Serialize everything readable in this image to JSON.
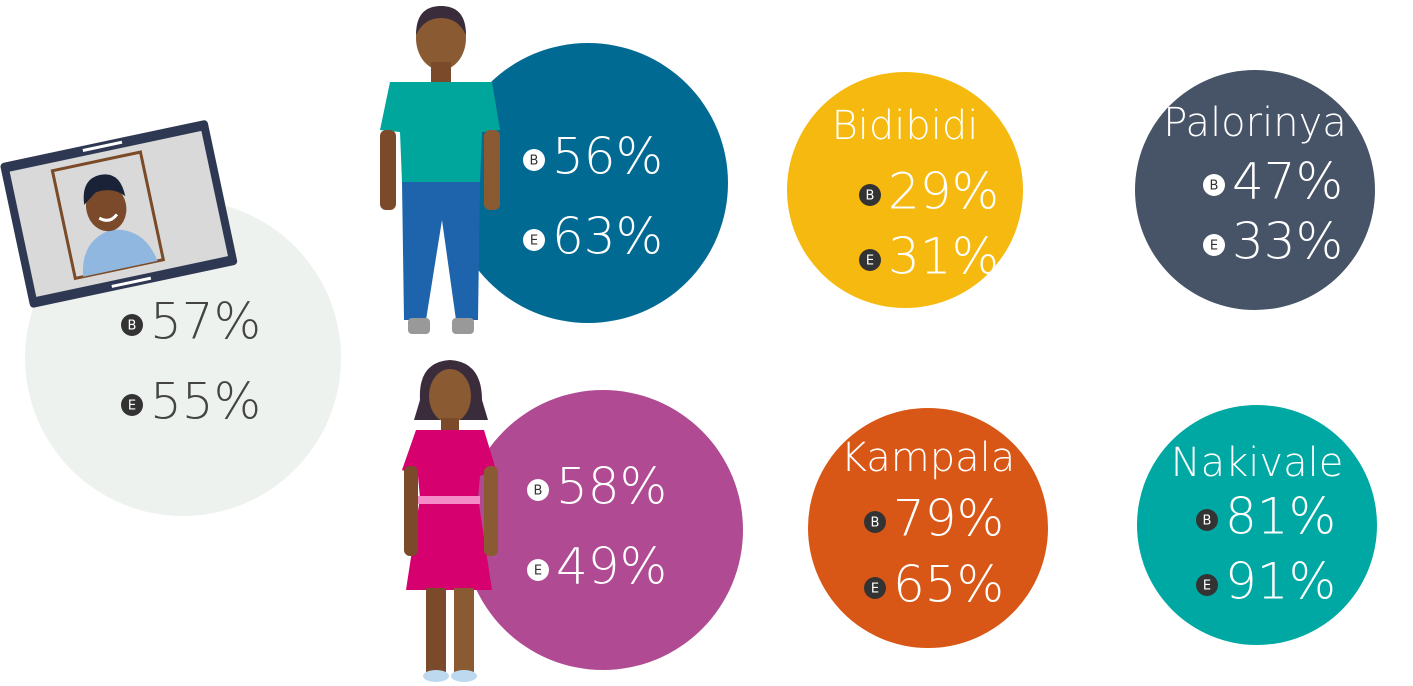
{
  "groups": [
    {
      "items": [
        {
          "badge": "B",
          "value": "57%"
        },
        {
          "badge": "E",
          "value": "55%"
        }
      ]
    },
    {
      "items": [
        {
          "badge": "B",
          "value": "56%"
        },
        {
          "badge": "E",
          "value": "63%"
        }
      ]
    },
    {
      "label": "Bidibidi",
      "items": [
        {
          "badge": "B",
          "value": "29%"
        },
        {
          "badge": "E",
          "value": "31%"
        }
      ]
    },
    {
      "label": "Palorinya",
      "items": [
        {
          "badge": "B",
          "value": "47%"
        },
        {
          "badge": "E",
          "value": "33%"
        }
      ]
    },
    {
      "items": [
        {
          "badge": "B",
          "value": "58%"
        },
        {
          "badge": "E",
          "value": "49%"
        }
      ]
    },
    {
      "label": "Kampala",
      "items": [
        {
          "badge": "B",
          "value": "79%"
        },
        {
          "badge": "E",
          "value": "65%"
        }
      ]
    },
    {
      "label": "Nakivale",
      "items": [
        {
          "badge": "B",
          "value": "81%"
        },
        {
          "badge": "E",
          "value": "91%"
        }
      ]
    }
  ]
}
